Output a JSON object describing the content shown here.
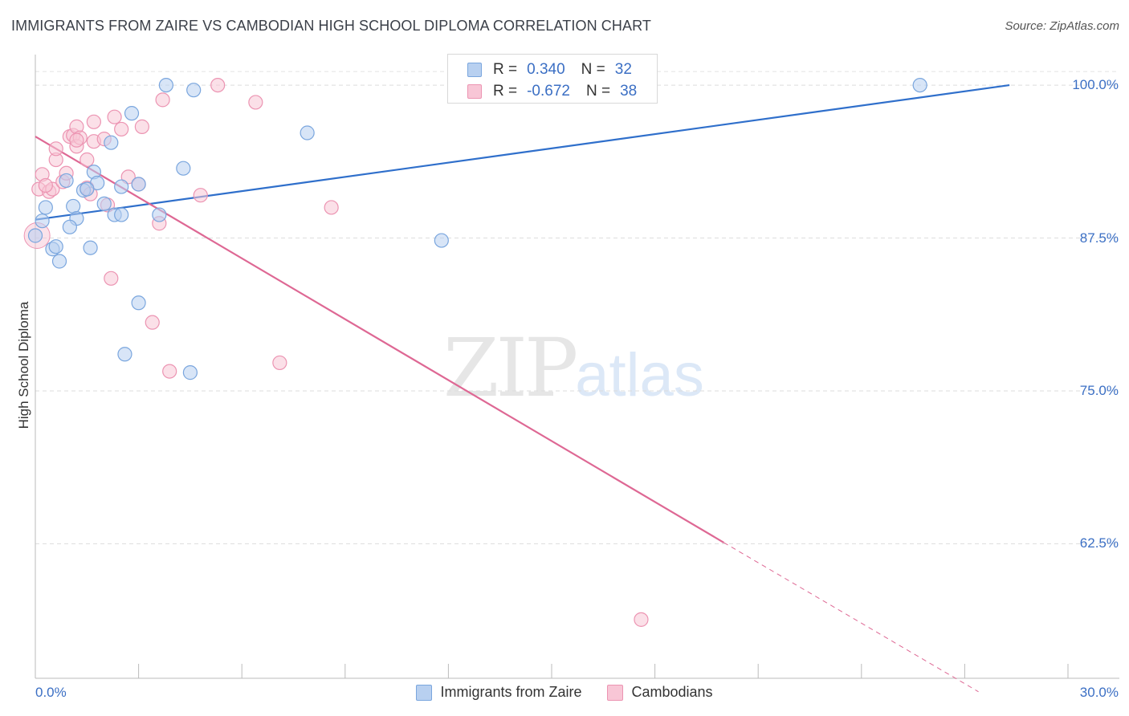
{
  "header": {
    "title": "IMMIGRANTS FROM ZAIRE VS CAMBODIAN HIGH SCHOOL DIPLOMA CORRELATION CHART",
    "source": "Source: ZipAtlas.com"
  },
  "watermark": {
    "zip": "ZIP",
    "atlas": "atlas"
  },
  "legend_top": {
    "rows": [
      {
        "r_label": "R =",
        "r_value": "0.340",
        "n_label": "N =",
        "n_value": "32"
      },
      {
        "r_label": "R =",
        "r_value": "-0.672",
        "n_label": "N =",
        "n_value": "38"
      }
    ]
  },
  "legend_bottom": {
    "items": [
      {
        "label": "Immigrants from Zaire"
      },
      {
        "label": "Cambodians"
      }
    ]
  },
  "colors": {
    "zaire_fill": "#b8d0f0",
    "zaire_stroke": "#7aa6de",
    "zaire_line": "#2f6fcb",
    "cambodian_fill": "#f8c6d6",
    "cambodian_stroke": "#ec94b2",
    "cambodian_line": "#de6894",
    "tick_text": "#3b6fc4",
    "grid": "#dddddd"
  },
  "chart_data": {
    "type": "scatter",
    "title": "IMMIGRANTS FROM ZAIRE VS CAMBODIAN HIGH SCHOOL DIPLOMA CORRELATION CHART",
    "xlabel": "",
    "ylabel": "High School Diploma",
    "xlim": [
      0,
      30
    ],
    "ylim": [
      51.5,
      102.5
    ],
    "x_tick_labels": [
      "0.0%",
      "30.0%"
    ],
    "y_ticks": [
      62.5,
      75.0,
      87.5,
      100.0
    ],
    "y_tick_labels": [
      "62.5%",
      "75.0%",
      "87.5%",
      "100.0%"
    ],
    "grid": "horizontal dashed",
    "legend_placement": "top-center and bottom",
    "series": [
      {
        "name": "Immigrants from Zaire",
        "R": 0.34,
        "N": 32,
        "points": [
          [
            0.0,
            87.7
          ],
          [
            0.2,
            88.9
          ],
          [
            0.3,
            90.0
          ],
          [
            0.5,
            86.6
          ],
          [
            0.6,
            86.8
          ],
          [
            0.7,
            85.6
          ],
          [
            0.9,
            92.2
          ],
          [
            1.1,
            90.1
          ],
          [
            1.2,
            89.1
          ],
          [
            1.0,
            88.4
          ],
          [
            1.4,
            91.4
          ],
          [
            1.6,
            86.7
          ],
          [
            1.7,
            92.9
          ],
          [
            1.8,
            92.0
          ],
          [
            2.0,
            90.3
          ],
          [
            2.2,
            95.3
          ],
          [
            2.3,
            89.4
          ],
          [
            2.5,
            91.7
          ],
          [
            2.5,
            89.4
          ],
          [
            2.6,
            78.0
          ],
          [
            2.8,
            97.7
          ],
          [
            3.0,
            91.9
          ],
          [
            3.0,
            82.2
          ],
          [
            3.6,
            89.4
          ],
          [
            3.8,
            100.0
          ],
          [
            4.3,
            93.2
          ],
          [
            4.5,
            76.5
          ],
          [
            4.6,
            99.6
          ],
          [
            7.9,
            96.1
          ],
          [
            11.8,
            87.3
          ],
          [
            25.7,
            100.0
          ],
          [
            1.5,
            91.5
          ]
        ],
        "trend": {
          "x": [
            0.0,
            28.3
          ],
          "y": [
            89.0,
            100.0
          ]
        }
      },
      {
        "name": "Cambodians",
        "R": -0.672,
        "N": 38,
        "points": [
          [
            0.1,
            91.5
          ],
          [
            0.2,
            92.7
          ],
          [
            0.4,
            91.3
          ],
          [
            0.5,
            91.5
          ],
          [
            0.6,
            93.9
          ],
          [
            0.6,
            94.8
          ],
          [
            0.8,
            92.1
          ],
          [
            0.9,
            92.8
          ],
          [
            1.0,
            95.8
          ],
          [
            1.1,
            95.9
          ],
          [
            1.2,
            95.0
          ],
          [
            1.2,
            96.6
          ],
          [
            1.3,
            95.7
          ],
          [
            1.5,
            91.6
          ],
          [
            1.5,
            93.9
          ],
          [
            1.6,
            91.1
          ],
          [
            1.7,
            95.4
          ],
          [
            1.7,
            97.0
          ],
          [
            2.0,
            95.6
          ],
          [
            2.1,
            90.2
          ],
          [
            2.2,
            84.2
          ],
          [
            2.3,
            97.4
          ],
          [
            2.5,
            96.4
          ],
          [
            2.7,
            92.5
          ],
          [
            3.0,
            91.9
          ],
          [
            3.1,
            96.6
          ],
          [
            3.4,
            80.6
          ],
          [
            3.6,
            88.7
          ],
          [
            3.7,
            98.8
          ],
          [
            3.9,
            76.6
          ],
          [
            4.8,
            91.0
          ],
          [
            5.3,
            100.0
          ],
          [
            6.4,
            98.6
          ],
          [
            7.1,
            77.3
          ],
          [
            8.6,
            90.0
          ],
          [
            17.6,
            56.3
          ],
          [
            1.2,
            95.5
          ],
          [
            0.3,
            91.8
          ]
        ],
        "trend": {
          "x": [
            0.0,
            20.0
          ],
          "y": [
            95.8,
            62.6
          ]
        },
        "trend_dashed": {
          "x": [
            20.0,
            27.4
          ],
          "y": [
            62.6,
            50.4
          ]
        }
      }
    ]
  }
}
